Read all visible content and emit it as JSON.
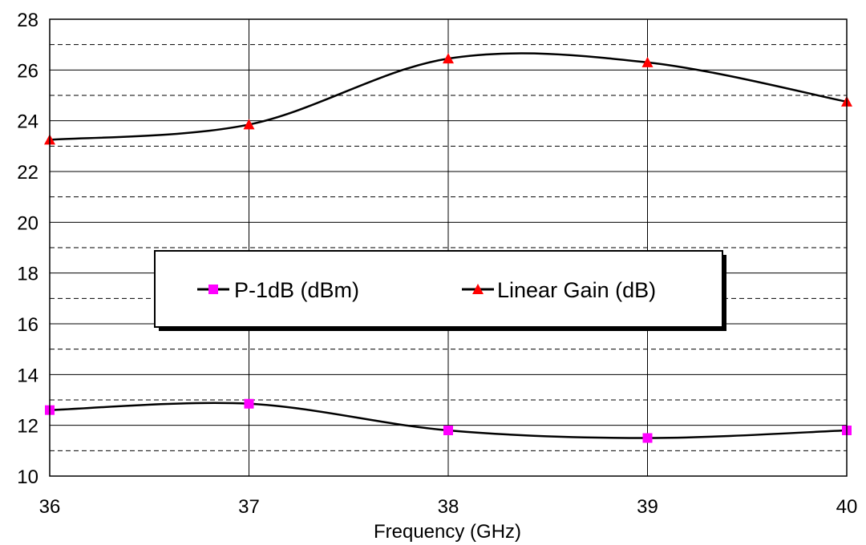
{
  "chart_data": {
    "type": "line",
    "title": "",
    "xlabel": "Frequency (GHz)",
    "ylabel": "",
    "x": [
      36,
      37,
      38,
      39,
      40
    ],
    "xlim": [
      36,
      40
    ],
    "ylim": [
      10,
      28
    ],
    "x_ticks": [
      "36",
      "37",
      "38",
      "39",
      "40"
    ],
    "y_ticks": [
      "10",
      "12",
      "14",
      "16",
      "18",
      "20",
      "22",
      "24",
      "26",
      "28"
    ],
    "major_grid_step": 2,
    "minor_grid_step": 1,
    "grid": true,
    "smooth": true,
    "legend_position": "center",
    "series": [
      {
        "name": "P-1dB (dBm)",
        "values": [
          12.6,
          12.85,
          11.8,
          11.5,
          11.8
        ],
        "color": "#000000",
        "marker": "square",
        "marker_color": "#ff00ff"
      },
      {
        "name": "Linear Gain (dB)",
        "values": [
          23.25,
          23.85,
          26.45,
          26.3,
          24.75
        ],
        "color": "#000000",
        "marker": "triangle",
        "marker_color": "#ff0000"
      }
    ]
  }
}
